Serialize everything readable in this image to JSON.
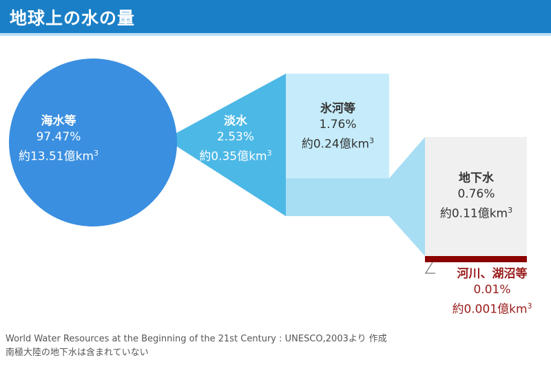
{
  "title": "地球上の水の量",
  "segments": {
    "sea": {
      "label": "海水等",
      "percent": "97.47%",
      "amount": "約13.51億km",
      "unit_sup": "3",
      "color": "#3a8fe0"
    },
    "fresh": {
      "label": "淡水",
      "percent": "2.53%",
      "amount": "約0.35億km",
      "unit_sup": "3",
      "color": "#4cb8e6"
    },
    "glacier": {
      "label": "氷河等",
      "percent": "1.76%",
      "amount": "約0.24億km",
      "unit_sup": "3",
      "color": "#c6ecfb"
    },
    "ground": {
      "label": "地下水",
      "percent": "0.76%",
      "amount": "約0.11億km",
      "unit_sup": "3",
      "color": "#f0f0f0"
    },
    "rivers": {
      "label": "河川、湖沼等",
      "percent": "0.01%",
      "amount": "約0.001億km",
      "unit_sup": "3",
      "color": "#8b0000"
    }
  },
  "notes": {
    "source": "World Water Resources at the Beginning of the 21st Century : UNESCO,2003より 作成",
    "exclusion": "南極大陸の地下水は含まれていない"
  }
}
